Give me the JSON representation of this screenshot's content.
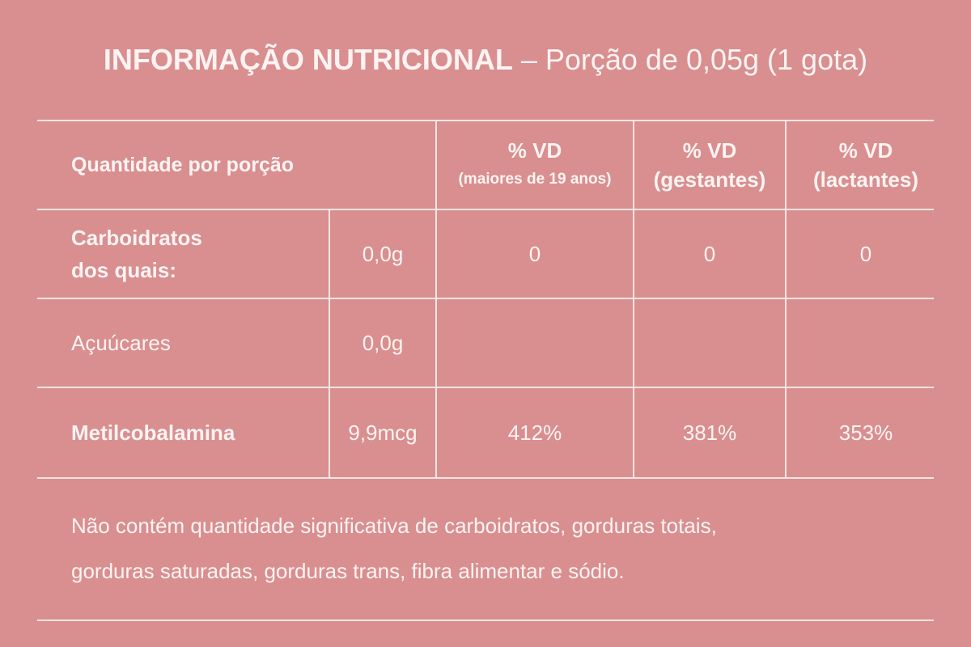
{
  "title": {
    "bold": "INFORMAÇÃO NUTRICIONAL",
    "separator": "–",
    "rest": "Porção de 0,05g (1 gota)"
  },
  "table": {
    "header": {
      "label": "Quantidade por porção",
      "columns": [
        {
          "main": "% VD",
          "sub": "(maiores de 19 anos)"
        },
        {
          "main": "% VD",
          "sub": "(gestantes)"
        },
        {
          "main": "% VD",
          "sub": "(lactantes)"
        }
      ]
    },
    "rows": [
      {
        "label_line1": "Carboidratos",
        "label_line2": "dos quais:",
        "amount": "0,0g",
        "vd": [
          "0",
          "0",
          "0"
        ]
      },
      {
        "label": "Açuúcares",
        "amount": "0,0g",
        "vd": [
          "",
          "",
          ""
        ]
      },
      {
        "label": "Metilcobalamina",
        "amount": "9,9mcg",
        "vd": [
          "412%",
          "381%",
          "353%"
        ]
      }
    ]
  },
  "note": {
    "line1": "Não contém quantidade significativa de carboidratos, gorduras totais,",
    "line2": "gorduras saturadas, gorduras trans, fibra alimentar e sódio."
  },
  "colors": {
    "background": "#d98f8f",
    "text": "#fdf3f3",
    "lines": "#f6e4e4"
  }
}
